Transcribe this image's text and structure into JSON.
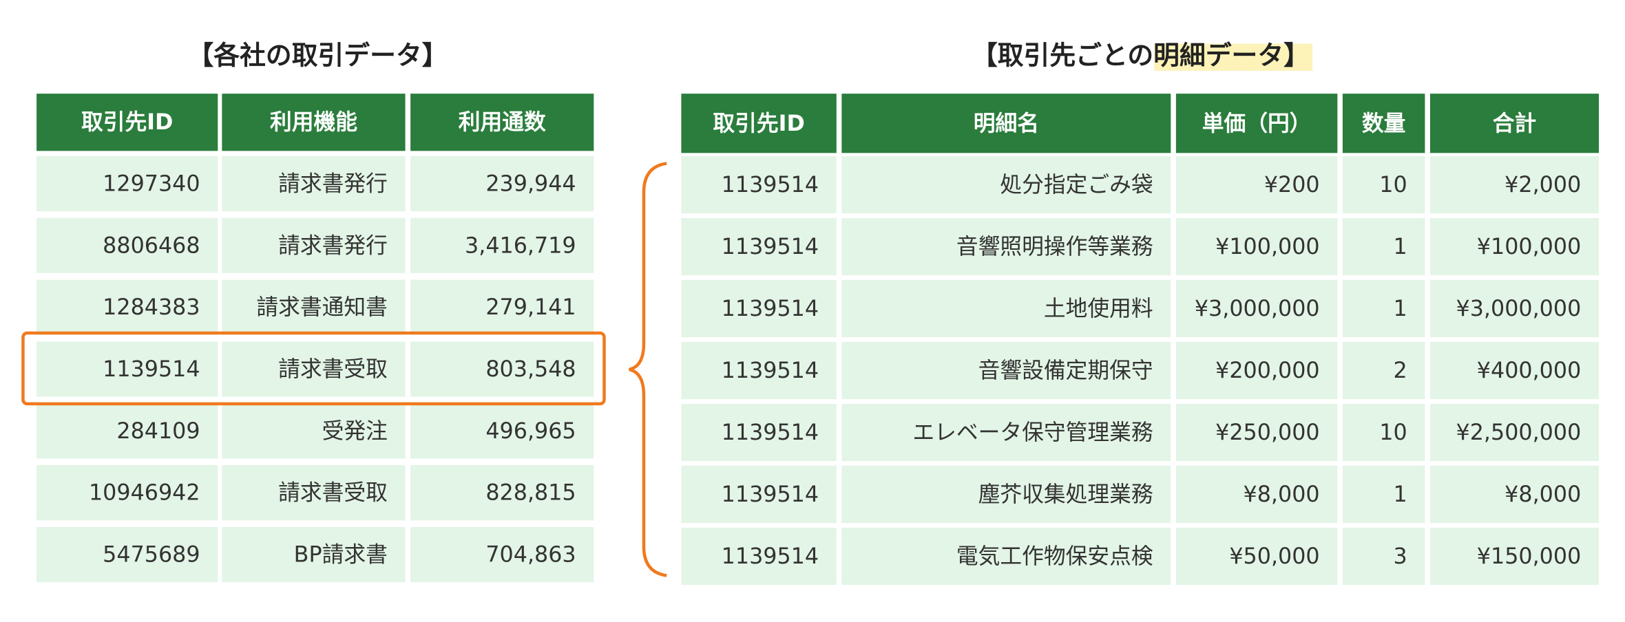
{
  "left_table": {
    "title": "【各社の取引データ】",
    "headers": [
      "取引先ID",
      "利用機能",
      "利用通数"
    ],
    "rows": [
      [
        "1297340",
        "請求書発行",
        "239,944"
      ],
      [
        "8806468",
        "請求書発行",
        "3,416,719"
      ],
      [
        "1284383",
        "請求書通知書",
        "279,141"
      ],
      [
        "1139514",
        "請求書受取",
        "803,548"
      ],
      [
        "284109",
        "受発注",
        "496,965"
      ],
      [
        "10946942",
        "請求書受取",
        "828,815"
      ],
      [
        "5475689",
        "BP請求書",
        "704,863"
      ]
    ]
  },
  "right_table": {
    "title": "【取引先ごとの明細データ】",
    "headers": [
      "取引先ID",
      "明細名",
      "単価（円）",
      "数量",
      "合計"
    ],
    "rows": [
      [
        "1139514",
        "処分指定ごみ袋",
        "¥200",
        "10",
        "¥2,000"
      ],
      [
        "1139514",
        "音響照明操作等業務",
        "¥100,000",
        "1",
        "¥100,000"
      ],
      [
        "1139514",
        "土地使用料",
        "¥3,000,000",
        "1",
        "¥3,000,000"
      ],
      [
        "1139514",
        "音響設備定期保守",
        "¥200,000",
        "2",
        "¥400,000"
      ],
      [
        "1139514",
        "エレベータ保守管理業務",
        "¥250,000",
        "10",
        "¥2,500,000"
      ],
      [
        "1139514",
        "塵芥収集処理業務",
        "¥8,000",
        "1",
        "¥8,000"
      ],
      [
        "1139514",
        "電気工作物保安点検",
        "¥50,000",
        "3",
        "¥150,000"
      ]
    ]
  }
}
